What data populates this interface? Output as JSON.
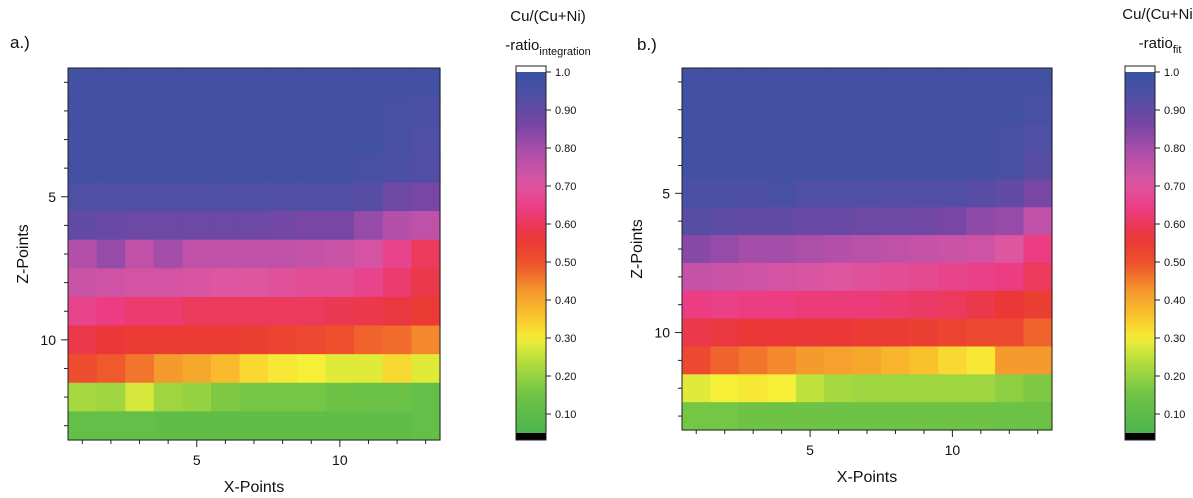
{
  "chart_data": [
    {
      "type": "heatmap",
      "panel_label": "a.)",
      "colorbar_title_line1": "Cu/(Cu+Ni)",
      "colorbar_title_prefix": "-ratio",
      "colorbar_title_subscript": "integration",
      "xlabel": "X-Points",
      "ylabel": "Z-Points",
      "xlim": [
        0.5,
        13.5
      ],
      "ylim": [
        0.5,
        13.5
      ],
      "x_ticks": [
        5,
        10
      ],
      "y_ticks": [
        5,
        10
      ],
      "colorbar_ticks": [
        "1.0",
        "0.90",
        "0.80",
        "0.70",
        "0.60",
        "0.50",
        "0.40",
        "0.30",
        "0.20",
        "0.10"
      ],
      "value_range": [
        0.05,
        1.0
      ],
      "z_rows": [
        [
          0.97,
          0.97,
          0.97,
          0.97,
          0.97,
          0.97,
          0.97,
          0.97,
          0.97,
          0.97,
          0.97,
          0.97,
          0.97
        ],
        [
          0.97,
          0.97,
          0.97,
          0.97,
          0.97,
          0.97,
          0.97,
          0.97,
          0.97,
          0.97,
          0.97,
          0.96,
          0.95
        ],
        [
          0.97,
          0.97,
          0.97,
          0.97,
          0.97,
          0.97,
          0.97,
          0.97,
          0.97,
          0.97,
          0.97,
          0.96,
          0.94
        ],
        [
          0.97,
          0.97,
          0.97,
          0.97,
          0.97,
          0.97,
          0.97,
          0.97,
          0.97,
          0.97,
          0.96,
          0.95,
          0.93
        ],
        [
          0.94,
          0.94,
          0.94,
          0.94,
          0.94,
          0.94,
          0.94,
          0.93,
          0.93,
          0.93,
          0.92,
          0.88,
          0.86
        ],
        [
          0.9,
          0.89,
          0.88,
          0.88,
          0.88,
          0.88,
          0.88,
          0.87,
          0.86,
          0.86,
          0.82,
          0.78,
          0.76
        ],
        [
          0.78,
          0.82,
          0.76,
          0.8,
          0.76,
          0.76,
          0.76,
          0.76,
          0.75,
          0.74,
          0.72,
          0.66,
          0.6
        ],
        [
          0.74,
          0.73,
          0.72,
          0.72,
          0.71,
          0.7,
          0.7,
          0.69,
          0.68,
          0.68,
          0.66,
          0.62,
          0.58
        ],
        [
          0.66,
          0.64,
          0.62,
          0.62,
          0.6,
          0.6,
          0.6,
          0.6,
          0.6,
          0.59,
          0.58,
          0.57,
          0.55
        ],
        [
          0.58,
          0.56,
          0.55,
          0.55,
          0.55,
          0.55,
          0.54,
          0.53,
          0.52,
          0.5,
          0.48,
          0.47,
          0.44
        ],
        [
          0.51,
          0.49,
          0.46,
          0.42,
          0.4,
          0.37,
          0.33,
          0.31,
          0.3,
          0.28,
          0.28,
          0.33,
          0.28
        ],
        [
          0.22,
          0.21,
          0.27,
          0.21,
          0.2,
          0.17,
          0.16,
          0.16,
          0.16,
          0.15,
          0.14,
          0.14,
          0.12
        ],
        [
          0.12,
          0.12,
          0.12,
          0.11,
          0.11,
          0.11,
          0.11,
          0.11,
          0.11,
          0.11,
          0.11,
          0.11,
          0.12
        ]
      ]
    },
    {
      "type": "heatmap",
      "panel_label": "b.)",
      "colorbar_title_line1": "Cu/(Cu+Ni)",
      "colorbar_title_prefix": "-ratio",
      "colorbar_title_subscript": "fit",
      "xlabel": "X-Points",
      "ylabel": "Z-Points",
      "xlim": [
        0.5,
        13.5
      ],
      "ylim": [
        0.5,
        13.5
      ],
      "x_ticks": [
        5,
        10
      ],
      "y_ticks": [
        5,
        10
      ],
      "colorbar_ticks": [
        "1.0",
        "0.90",
        "0.80",
        "0.70",
        "0.60",
        "0.50",
        "0.40",
        "0.30",
        "0.20",
        "0.10"
      ],
      "value_range": [
        0.05,
        1.0
      ],
      "z_rows": [
        [
          0.97,
          0.97,
          0.97,
          0.97,
          0.97,
          0.97,
          0.97,
          0.97,
          0.97,
          0.97,
          0.97,
          0.97,
          0.97
        ],
        [
          0.97,
          0.97,
          0.97,
          0.97,
          0.97,
          0.97,
          0.97,
          0.97,
          0.97,
          0.97,
          0.97,
          0.97,
          0.96
        ],
        [
          0.97,
          0.97,
          0.97,
          0.97,
          0.97,
          0.97,
          0.97,
          0.97,
          0.97,
          0.97,
          0.97,
          0.96,
          0.94
        ],
        [
          0.97,
          0.97,
          0.97,
          0.97,
          0.97,
          0.97,
          0.97,
          0.97,
          0.97,
          0.97,
          0.97,
          0.96,
          0.92
        ],
        [
          0.95,
          0.95,
          0.95,
          0.96,
          0.94,
          0.94,
          0.94,
          0.93,
          0.93,
          0.93,
          0.92,
          0.9,
          0.86
        ],
        [
          0.92,
          0.91,
          0.9,
          0.9,
          0.89,
          0.89,
          0.88,
          0.88,
          0.87,
          0.86,
          0.83,
          0.82,
          0.76
        ],
        [
          0.84,
          0.82,
          0.8,
          0.8,
          0.79,
          0.78,
          0.77,
          0.76,
          0.75,
          0.74,
          0.73,
          0.7,
          0.64
        ],
        [
          0.75,
          0.74,
          0.73,
          0.72,
          0.71,
          0.7,
          0.69,
          0.68,
          0.67,
          0.66,
          0.65,
          0.64,
          0.6
        ],
        [
          0.64,
          0.65,
          0.64,
          0.64,
          0.63,
          0.63,
          0.63,
          0.62,
          0.61,
          0.6,
          0.58,
          0.56,
          0.54
        ],
        [
          0.58,
          0.57,
          0.56,
          0.56,
          0.56,
          0.56,
          0.55,
          0.55,
          0.54,
          0.53,
          0.52,
          0.52,
          0.48
        ],
        [
          0.52,
          0.48,
          0.46,
          0.44,
          0.42,
          0.41,
          0.4,
          0.38,
          0.36,
          0.33,
          0.31,
          0.42,
          0.42
        ],
        [
          0.28,
          0.3,
          0.31,
          0.3,
          0.25,
          0.22,
          0.21,
          0.21,
          0.21,
          0.21,
          0.21,
          0.19,
          0.17
        ],
        [
          0.16,
          0.16,
          0.15,
          0.15,
          0.15,
          0.15,
          0.15,
          0.15,
          0.15,
          0.15,
          0.15,
          0.14,
          0.14
        ]
      ]
    }
  ]
}
